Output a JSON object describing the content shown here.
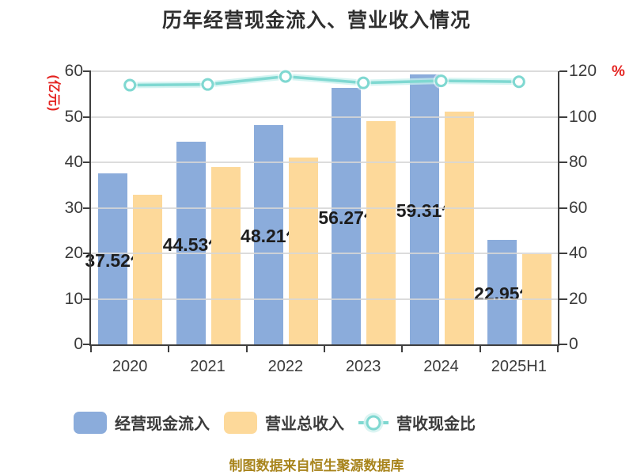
{
  "title": "历年经营现金流入、营业收入情况",
  "footer_credit": "制图数据来自恒生聚源数据库",
  "colors": {
    "cash_bar": "#8bacdb",
    "revenue_bar": "#fdd99a",
    "ratio_line": "#7fd8d1",
    "axis": "#3f3f3f",
    "grid": "#d6d6d6",
    "tick_text": "#3b3b3b",
    "unit_label_red": "#e42320",
    "bar_label_text": "#1d1d1d",
    "footer_gold": "#a8841c"
  },
  "left_axis": {
    "unit_label": "(亿元)",
    "ticks": [
      0,
      10,
      20,
      30,
      40,
      50,
      60
    ],
    "max": 60
  },
  "right_axis": {
    "unit_label": "%",
    "ticks": [
      0,
      20,
      40,
      60,
      80,
      100,
      120
    ],
    "max": 120
  },
  "legend": {
    "items": [
      {
        "label": "经营现金流入",
        "type": "bar",
        "color": "#8bacdb"
      },
      {
        "label": "营业总收入",
        "type": "bar",
        "color": "#fdd99a"
      },
      {
        "label": "营收现金比",
        "type": "line",
        "color": "#7fd8d1"
      }
    ]
  },
  "chart_data": {
    "type": "combo-grouped-bar-and-line",
    "title": "历年经营现金流入、营业收入情况",
    "categories": [
      "2020",
      "2021",
      "2022",
      "2023",
      "2024",
      "2025H1"
    ],
    "series": [
      {
        "name": "经营现金流入",
        "type": "bar",
        "axis": "left",
        "unit": "亿元",
        "color": "#8bacdb",
        "values": [
          37.52,
          44.53,
          48.21,
          56.27,
          59.31,
          22.95
        ],
        "data_labels": [
          "37.52亿",
          "44.53亿",
          "48.21亿",
          "56.27亿",
          "59.31亿",
          "22.95亿"
        ],
        "estimated": false
      },
      {
        "name": "营业总收入",
        "type": "bar",
        "axis": "left",
        "unit": "亿元",
        "color": "#fdd99a",
        "values": [
          32.9,
          39.0,
          41.0,
          49.0,
          51.2,
          19.9
        ],
        "estimated": true
      },
      {
        "name": "营收现金比",
        "type": "line",
        "axis": "right",
        "unit": "%",
        "color": "#7fd8d1",
        "values": [
          113.9,
          114.2,
          117.7,
          114.9,
          115.8,
          115.4
        ],
        "estimated": true
      }
    ],
    "left_ylim": [
      0,
      60
    ],
    "right_ylim": [
      0,
      120
    ],
    "grid": true,
    "legend_position": "bottom"
  }
}
